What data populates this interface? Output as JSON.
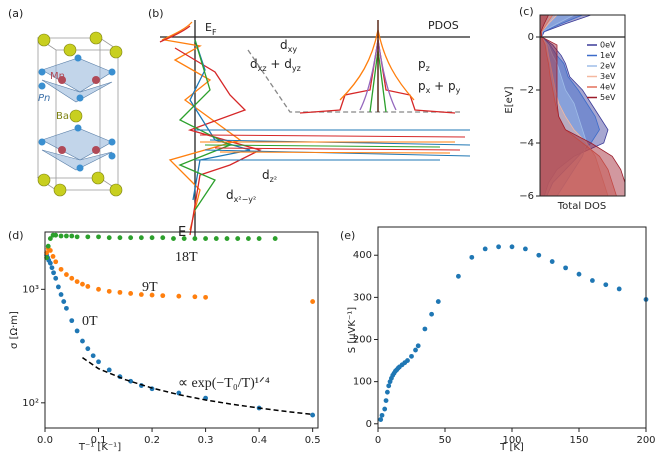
{
  "structure": {
    "label": "(a)",
    "atoms": [
      "Mn",
      "Pn",
      "Ba"
    ]
  },
  "pdos": {
    "label": "(b)",
    "fermi": [
      {
        "t": "E"
      },
      {
        "t": "F",
        "sub": true
      }
    ],
    "title": [
      {
        "t": "PDOS"
      }
    ],
    "energy": [
      {
        "t": "E"
      }
    ],
    "orbitals": [
      {
        "color": "#ff7f0e",
        "text": [
          {
            "t": "d"
          },
          {
            "t": "xy",
            "sub": true
          }
        ]
      },
      {
        "color": "#d62728",
        "text": [
          {
            "t": "d"
          },
          {
            "t": "xz",
            "sub": true
          },
          {
            "t": " + "
          },
          {
            "t": "d"
          },
          {
            "t": "yz",
            "sub": true
          }
        ]
      },
      {
        "color": "#1f77b4",
        "text": [
          {
            "t": "d"
          },
          {
            "t": "z²",
            "sub": true
          }
        ]
      },
      {
        "color": "#2ca02c",
        "text": [
          {
            "t": "d"
          },
          {
            "t": "x²−y²",
            "sub": true
          }
        ]
      },
      {
        "color": "#222222",
        "text": [
          {
            "t": "p"
          },
          {
            "t": "z",
            "sub": true
          }
        ]
      },
      {
        "color": "#222222",
        "text": [
          {
            "t": "p"
          },
          {
            "t": "x",
            "sub": true
          },
          {
            "t": " + "
          },
          {
            "t": "p"
          },
          {
            "t": "y",
            "sub": true
          }
        ]
      }
    ]
  },
  "chart_data": [
    {
      "type": "area",
      "orientation": "horizontal",
      "label": "(c)",
      "ylabel": "E[eV]",
      "xlabel": "Total DOS",
      "xlim": [
        0,
        1
      ],
      "ylim": [
        -6,
        0.83
      ],
      "yticks": [
        0,
        {
          "value": -2,
          "label": "−2"
        },
        {
          "value": -4,
          "label": "−4"
        },
        {
          "value": -6,
          "label": "−6"
        }
      ],
      "axhline": 0,
      "legend": "upper right",
      "energy": [
        0.83,
        0.5,
        0.2,
        0,
        -0.3,
        -0.7,
        -1,
        -1.5,
        -2,
        -2.5,
        -3,
        -3.5,
        -4,
        -4.5,
        -5,
        -5.5,
        -6
      ],
      "series": [
        {
          "name": "0eV",
          "color": "#3b3b98",
          "values": [
            0.6,
            0.3,
            0.05,
            0.02,
            0.15,
            0.25,
            0.3,
            0.35,
            0.5,
            0.6,
            0.7,
            0.8,
            0.75,
            0.4,
            0.2,
            0.1,
            0.05
          ]
        },
        {
          "name": "1eV",
          "color": "#3c6bc9",
          "values": [
            0.5,
            0.25,
            0.04,
            0.02,
            0.12,
            0.2,
            0.28,
            0.33,
            0.45,
            0.55,
            0.65,
            0.7,
            0.6,
            0.45,
            0.3,
            0.15,
            0.08
          ]
        },
        {
          "name": "2eV",
          "color": "#9fbde8",
          "values": [
            0.4,
            0.2,
            0.03,
            0.02,
            0.1,
            0.15,
            0.2,
            0.25,
            0.3,
            0.4,
            0.45,
            0.5,
            0.55,
            0.5,
            0.4,
            0.3,
            0.2
          ]
        },
        {
          "name": "3eV",
          "color": "#f5b8a0",
          "values": [
            0.2,
            0.1,
            0.02,
            0.02,
            0.08,
            0.1,
            0.12,
            0.15,
            0.18,
            0.22,
            0.3,
            0.4,
            0.55,
            0.65,
            0.7,
            0.75,
            0.8
          ]
        },
        {
          "name": "4eV",
          "color": "#e2705a",
          "values": [
            0.15,
            0.08,
            0.02,
            0.02,
            0.06,
            0.08,
            0.1,
            0.12,
            0.15,
            0.18,
            0.22,
            0.3,
            0.5,
            0.7,
            0.8,
            0.85,
            0.9
          ]
        },
        {
          "name": "5eV",
          "color": "#9b1b2a",
          "values": [
            0.1,
            0.05,
            0.01,
            0.02,
            0.2,
            0.2,
            0.2,
            0.2,
            0.2,
            0.2,
            0.22,
            0.3,
            0.6,
            0.85,
            0.95,
            1.0,
            1.0
          ]
        }
      ]
    },
    {
      "type": "scatter",
      "label": "(d)",
      "ylabel": "σ [Ω·m]",
      "xlabel": "T⁻¹ [K⁻¹]",
      "xlim": [
        0,
        0.51
      ],
      "ylim": [
        60,
        3200
      ],
      "yscale": "log",
      "xticks": [
        {
          "value": 0,
          "label": "0.0"
        },
        0.1,
        0.2,
        0.3,
        0.4,
        0.5
      ],
      "yticks": [
        {
          "value": 100,
          "label": "10²"
        },
        {
          "value": 1000,
          "label": "10³"
        }
      ],
      "series": [
        {
          "name": "0T",
          "color": "#1f77b4",
          "x": [
            0.003,
            0.005,
            0.007,
            0.01,
            0.013,
            0.016,
            0.02,
            0.025,
            0.03,
            0.035,
            0.04,
            0.05,
            0.06,
            0.07,
            0.08,
            0.09,
            0.1,
            0.12,
            0.14,
            0.16,
            0.18,
            0.2,
            0.25,
            0.3,
            0.4,
            0.5
          ],
          "values": [
            2000,
            1900,
            1800,
            1700,
            1550,
            1400,
            1250,
            1050,
            900,
            780,
            680,
            530,
            430,
            350,
            300,
            260,
            230,
            195,
            170,
            155,
            142,
            133,
            122,
            110,
            90,
            78
          ]
        },
        {
          "name": "9T",
          "color": "#ff7f0e",
          "x": [
            0.003,
            0.006,
            0.01,
            0.015,
            0.02,
            0.03,
            0.04,
            0.05,
            0.06,
            0.07,
            0.08,
            0.1,
            0.12,
            0.14,
            0.16,
            0.18,
            0.2,
            0.22,
            0.25,
            0.28,
            0.3,
            0.5
          ],
          "values": [
            2100,
            2300,
            2200,
            1950,
            1750,
            1500,
            1350,
            1250,
            1170,
            1110,
            1060,
            1000,
            960,
            940,
            920,
            900,
            890,
            880,
            870,
            860,
            850,
            780
          ]
        },
        {
          "name": "18T",
          "color": "#2ca02c",
          "x": [
            0.003,
            0.006,
            0.01,
            0.015,
            0.02,
            0.03,
            0.04,
            0.05,
            0.06,
            0.08,
            0.1,
            0.12,
            0.14,
            0.16,
            0.18,
            0.2,
            0.22,
            0.24,
            0.26,
            0.28,
            0.3,
            0.32,
            0.34,
            0.36,
            0.38,
            0.4,
            0.43
          ],
          "values": [
            1900,
            2400,
            2800,
            3000,
            3000,
            2950,
            2950,
            2950,
            2900,
            2900,
            2900,
            2850,
            2850,
            2850,
            2850,
            2850,
            2850,
            2800,
            2800,
            2800,
            2800,
            2800,
            2800,
            2800,
            2800,
            2800,
            2800
          ]
        }
      ],
      "fit": {
        "label": "∝ exp(−T₀/T)¹ᐟ⁴",
        "color": "#000000",
        "x": [
          0.07,
          0.1,
          0.15,
          0.2,
          0.25,
          0.3,
          0.35,
          0.4,
          0.45,
          0.5
        ],
        "values": [
          250,
          200,
          160,
          135,
          118,
          106,
          97,
          90,
          84,
          79
        ]
      }
    },
    {
      "type": "scatter",
      "label": "(e)",
      "ylabel": "S [μVK⁻¹]",
      "xlabel": "T [K]",
      "xlim": [
        0,
        200
      ],
      "ylim": [
        -10,
        467
      ],
      "xticks": [
        0,
        50,
        100,
        150,
        200
      ],
      "yticks": [
        0,
        100,
        200,
        300,
        400
      ],
      "series": [
        {
          "color": "#1f77b4",
          "x": [
            2,
            3,
            5,
            6,
            7,
            8,
            9,
            10,
            11,
            12,
            13,
            14,
            15,
            16,
            18,
            20,
            22,
            25,
            28,
            30,
            35,
            40,
            45,
            60,
            70,
            80,
            90,
            100,
            110,
            120,
            130,
            140,
            150,
            160,
            170,
            180,
            200
          ],
          "values": [
            10,
            20,
            35,
            55,
            75,
            90,
            100,
            108,
            115,
            120,
            125,
            128,
            132,
            135,
            140,
            145,
            150,
            160,
            175,
            185,
            225,
            260,
            290,
            350,
            395,
            415,
            420,
            420,
            415,
            400,
            385,
            370,
            355,
            340,
            330,
            320,
            295
          ]
        }
      ]
    }
  ]
}
